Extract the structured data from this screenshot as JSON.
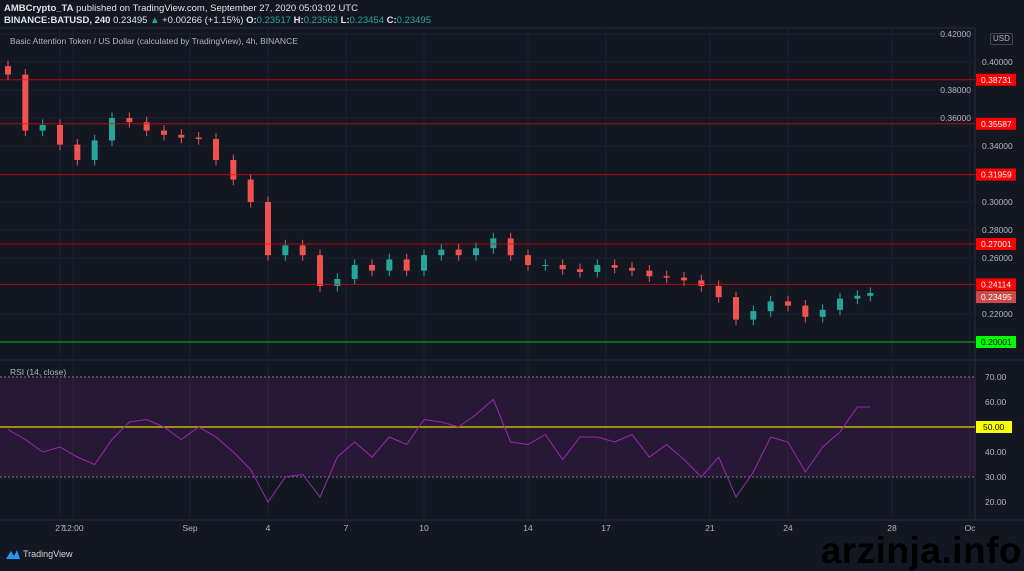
{
  "header": {
    "line1": {
      "author": "AMBCrypto_TA",
      "text": " published on TradingView.com, September 27, 2020 05:03:02 UTC"
    },
    "line2": {
      "symbol": "BINANCE:BATUSD, 240",
      "last": "0.23495",
      "change": "+0.00266 (+1.15%)",
      "o_label": "O:",
      "o": "0.23517",
      "h_label": "H:",
      "h": "0.23563",
      "l_label": "L:",
      "l": "0.23454",
      "c_label": "C:",
      "c": "0.23495"
    }
  },
  "brand": "TradingView",
  "watermark": "arzinja.info",
  "chart_data": [
    {
      "type": "candlestick",
      "title": "Basic Attention Token / US Dollar (calculated by TradingView), 4h, BINANCE",
      "currency": "USD",
      "ylim": [
        0.195,
        0.42
      ],
      "y_ticks": [
        "0.42000",
        "0.40000",
        "0.38000",
        "0.36000",
        "0.34000",
        "0.30000",
        "0.28000",
        "0.26000",
        "0.22000"
      ],
      "x_ticks": [
        "27",
        "12:00",
        "Sep",
        "4",
        "7",
        "10",
        "14",
        "17",
        "21",
        "24",
        "28",
        "Oc"
      ],
      "x_tick_dates": [
        "2020-08-27T00:00",
        "2020-08-27T12:00",
        "2020-09-01T00:00",
        "2020-09-04T00:00",
        "2020-09-07T00:00",
        "2020-09-10T00:00",
        "2020-09-14T00:00",
        "2020-09-17T00:00",
        "2020-09-21T00:00",
        "2020-09-24T00:00",
        "2020-09-28T00:00",
        "2020-10-01T00:00"
      ],
      "closes": [
        [
          "2020-08-25T00:00",
          0.391
        ],
        [
          "2020-08-25T16:00",
          0.351
        ],
        [
          "2020-08-26T08:00",
          0.355
        ],
        [
          "2020-08-27T00:00",
          0.341
        ],
        [
          "2020-08-27T16:00",
          0.33
        ],
        [
          "2020-08-28T08:00",
          0.344
        ],
        [
          "2020-08-29T00:00",
          0.36
        ],
        [
          "2020-08-29T16:00",
          0.357
        ],
        [
          "2020-08-30T08:00",
          0.351
        ],
        [
          "2020-08-31T00:00",
          0.348
        ],
        [
          "2020-08-31T16:00",
          0.346
        ],
        [
          "2020-09-01T08:00",
          0.345
        ],
        [
          "2020-09-02T00:00",
          0.33
        ],
        [
          "2020-09-02T16:00",
          0.316
        ],
        [
          "2020-09-03T08:00",
          0.3
        ],
        [
          "2020-09-04T00:00",
          0.262
        ],
        [
          "2020-09-04T16:00",
          0.269
        ],
        [
          "2020-09-05T08:00",
          0.262
        ],
        [
          "2020-09-06T00:00",
          0.24
        ],
        [
          "2020-09-06T16:00",
          0.245
        ],
        [
          "2020-09-07T08:00",
          0.255
        ],
        [
          "2020-09-08T00:00",
          0.251
        ],
        [
          "2020-09-08T16:00",
          0.259
        ],
        [
          "2020-09-09T08:00",
          0.251
        ],
        [
          "2020-09-10T00:00",
          0.262
        ],
        [
          "2020-09-10T16:00",
          0.266
        ],
        [
          "2020-09-11T08:00",
          0.262
        ],
        [
          "2020-09-12T00:00",
          0.267
        ],
        [
          "2020-09-12T16:00",
          0.274
        ],
        [
          "2020-09-13T08:00",
          0.262
        ],
        [
          "2020-09-14T00:00",
          0.255
        ],
        [
          "2020-09-14T16:00",
          0.255
        ],
        [
          "2020-09-15T08:00",
          0.252
        ],
        [
          "2020-09-16T00:00",
          0.25
        ],
        [
          "2020-09-16T16:00",
          0.255
        ],
        [
          "2020-09-17T08:00",
          0.253
        ],
        [
          "2020-09-18T00:00",
          0.251
        ],
        [
          "2020-09-18T16:00",
          0.247
        ],
        [
          "2020-09-19T08:00",
          0.246
        ],
        [
          "2020-09-20T00:00",
          0.244
        ],
        [
          "2020-09-20T16:00",
          0.24
        ],
        [
          "2020-09-21T08:00",
          0.232
        ],
        [
          "2020-09-22T00:00",
          0.216
        ],
        [
          "2020-09-22T16:00",
          0.222
        ],
        [
          "2020-09-23T08:00",
          0.229
        ],
        [
          "2020-09-24T00:00",
          0.226
        ],
        [
          "2020-09-24T16:00",
          0.218
        ],
        [
          "2020-09-25T08:00",
          0.223
        ],
        [
          "2020-09-26T00:00",
          0.231
        ],
        [
          "2020-09-26T16:00",
          0.233
        ],
        [
          "2020-09-27T04:00",
          0.235
        ]
      ],
      "levels": [
        {
          "value": "0.38731",
          "color": "#ff0000"
        },
        {
          "value": "0.35587",
          "color": "#ff0000"
        },
        {
          "value": "0.31959",
          "color": "#ff0000"
        },
        {
          "value": "0.27001",
          "color": "#ff0000"
        },
        {
          "value": "0.24114",
          "color": "#ff0000"
        },
        {
          "value": "0.20001",
          "color": "#00ff00"
        }
      ],
      "last_price": {
        "value": "0.23495",
        "color": "#ef5350"
      },
      "colors": {
        "up": "#26a69a",
        "down": "#ef5350"
      }
    },
    {
      "type": "line",
      "title": "RSI (14, close)",
      "ylim": [
        10,
        76
      ],
      "y_ticks": [
        "70.00",
        "60.00",
        "40.00",
        "30.00",
        "20.00"
      ],
      "bands": {
        "upper": 70,
        "lower": 30,
        "middle": {
          "value": "50.00",
          "color": "#ffff00"
        }
      },
      "color": "#9c27b0",
      "values": [
        49,
        45,
        40,
        42,
        38,
        35,
        45,
        52,
        53,
        50,
        45,
        50,
        46,
        40,
        33,
        20,
        30,
        31,
        22,
        38,
        44,
        38,
        46,
        43,
        53,
        52,
        50,
        55,
        61,
        44,
        43,
        47,
        37,
        46,
        46,
        44,
        47,
        38,
        43,
        37,
        30,
        38,
        22,
        32,
        46,
        44,
        32,
        42,
        48,
        58,
        58
      ]
    }
  ]
}
